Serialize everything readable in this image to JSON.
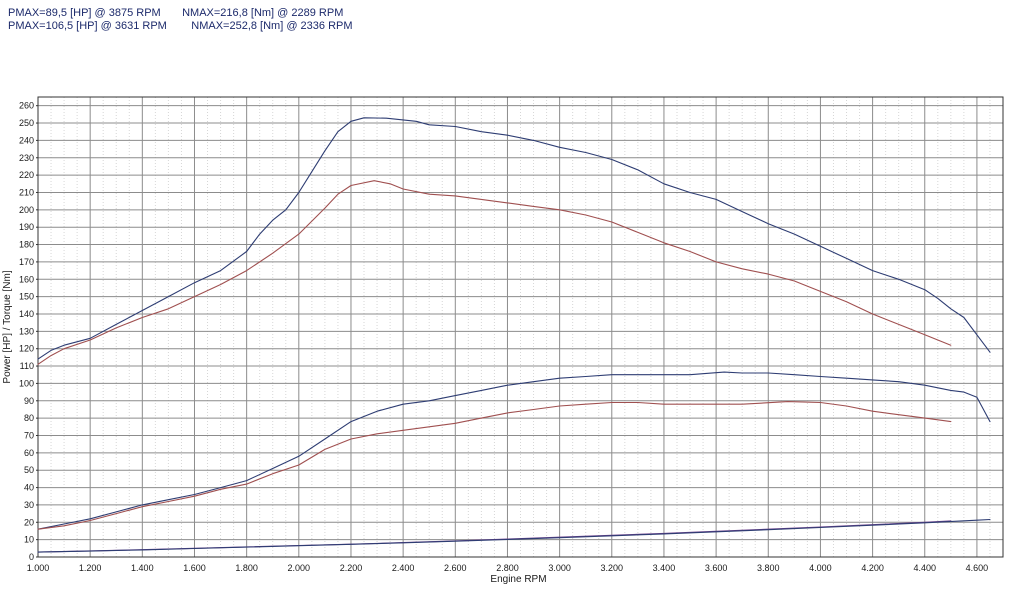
{
  "header": {
    "line1": "PMAX=89,5 [HP] @ 3875 RPM       NMAX=216,8 [Nm] @ 2289 RPM",
    "line2": "PMAX=106,5 [HP] @ 3631 RPM        NMAX=252,8 [Nm] @ 2336 RPM"
  },
  "chart_data": {
    "type": "line",
    "xlabel": "Engine RPM",
    "ylabel": "Power [HP] / Torque [Nm]",
    "xlim": [
      1000,
      4700
    ],
    "ylim": [
      0,
      265
    ],
    "grid": true,
    "x_ticks": [
      1000,
      1200,
      1400,
      1600,
      1800,
      2000,
      2200,
      2400,
      2600,
      2800,
      3000,
      3200,
      3400,
      3600,
      3800,
      4000,
      4200,
      4400,
      4600
    ],
    "x_tick_labels": [
      "1.000",
      "1.200",
      "1.400",
      "1.600",
      "1.800",
      "2.000",
      "2.200",
      "2.400",
      "2.600",
      "2.800",
      "3.000",
      "3.200",
      "3.400",
      "3.600",
      "3.800",
      "4.000",
      "4.200",
      "4.400",
      "4.600"
    ],
    "y_ticks": [
      0,
      10,
      20,
      30,
      40,
      50,
      60,
      70,
      80,
      90,
      100,
      110,
      120,
      130,
      140,
      150,
      160,
      170,
      180,
      190,
      200,
      210,
      220,
      230,
      240,
      250,
      260
    ],
    "series": [
      {
        "color": "#2e3d73",
        "points": [
          [
            1000,
            114
          ],
          [
            1050,
            119
          ],
          [
            1100,
            122
          ],
          [
            1200,
            126
          ],
          [
            1300,
            134
          ],
          [
            1400,
            142
          ],
          [
            1500,
            150
          ],
          [
            1600,
            158
          ],
          [
            1700,
            165
          ],
          [
            1800,
            176
          ],
          [
            1850,
            186
          ],
          [
            1900,
            194
          ],
          [
            1950,
            200
          ],
          [
            2000,
            210
          ],
          [
            2050,
            222
          ],
          [
            2100,
            234
          ],
          [
            2150,
            245
          ],
          [
            2200,
            251
          ],
          [
            2250,
            253
          ],
          [
            2336,
            252.8
          ],
          [
            2450,
            251
          ],
          [
            2500,
            249
          ],
          [
            2600,
            248
          ],
          [
            2700,
            245
          ],
          [
            2800,
            243
          ],
          [
            2900,
            240
          ],
          [
            3000,
            236
          ],
          [
            3100,
            233
          ],
          [
            3200,
            229
          ],
          [
            3300,
            223
          ],
          [
            3400,
            215
          ],
          [
            3500,
            210
          ],
          [
            3600,
            206
          ],
          [
            3700,
            199
          ],
          [
            3800,
            192
          ],
          [
            3900,
            186
          ],
          [
            4000,
            179
          ],
          [
            4100,
            172
          ],
          [
            4200,
            165
          ],
          [
            4300,
            160
          ],
          [
            4400,
            154
          ],
          [
            4450,
            149
          ],
          [
            4500,
            143
          ],
          [
            4550,
            138
          ],
          [
            4600,
            128
          ],
          [
            4650,
            118
          ]
        ]
      },
      {
        "color": "#a05050",
        "points": [
          [
            1000,
            111
          ],
          [
            1050,
            116
          ],
          [
            1100,
            120
          ],
          [
            1200,
            125
          ],
          [
            1300,
            132
          ],
          [
            1400,
            138
          ],
          [
            1500,
            143
          ],
          [
            1600,
            150
          ],
          [
            1700,
            157
          ],
          [
            1800,
            165
          ],
          [
            1900,
            175
          ],
          [
            2000,
            186
          ],
          [
            2100,
            201
          ],
          [
            2150,
            209
          ],
          [
            2200,
            214
          ],
          [
            2289,
            216.8
          ],
          [
            2350,
            215
          ],
          [
            2400,
            212
          ],
          [
            2500,
            209
          ],
          [
            2600,
            208
          ],
          [
            2700,
            206
          ],
          [
            2800,
            204
          ],
          [
            2900,
            202
          ],
          [
            3000,
            200
          ],
          [
            3100,
            197
          ],
          [
            3200,
            193
          ],
          [
            3300,
            187
          ],
          [
            3400,
            181
          ],
          [
            3500,
            176
          ],
          [
            3600,
            170
          ],
          [
            3700,
            166
          ],
          [
            3800,
            163
          ],
          [
            3900,
            159
          ],
          [
            4000,
            153
          ],
          [
            4100,
            147
          ],
          [
            4200,
            140
          ],
          [
            4300,
            134
          ],
          [
            4400,
            128
          ],
          [
            4450,
            125
          ],
          [
            4500,
            122
          ]
        ]
      },
      {
        "color": "#2e3d73",
        "points": [
          [
            1000,
            16
          ],
          [
            1100,
            19
          ],
          [
            1200,
            22
          ],
          [
            1300,
            26
          ],
          [
            1400,
            30
          ],
          [
            1500,
            33
          ],
          [
            1600,
            36
          ],
          [
            1700,
            40
          ],
          [
            1800,
            44
          ],
          [
            1900,
            51
          ],
          [
            2000,
            58
          ],
          [
            2100,
            68
          ],
          [
            2200,
            78
          ],
          [
            2300,
            84
          ],
          [
            2400,
            88
          ],
          [
            2500,
            90
          ],
          [
            2600,
            93
          ],
          [
            2700,
            96
          ],
          [
            2800,
            99
          ],
          [
            2900,
            101
          ],
          [
            3000,
            103
          ],
          [
            3100,
            104
          ],
          [
            3200,
            105
          ],
          [
            3300,
            105
          ],
          [
            3400,
            105
          ],
          [
            3500,
            105
          ],
          [
            3631,
            106.5
          ],
          [
            3700,
            106
          ],
          [
            3800,
            106
          ],
          [
            3900,
            105
          ],
          [
            4000,
            104
          ],
          [
            4100,
            103
          ],
          [
            4200,
            102
          ],
          [
            4300,
            101
          ],
          [
            4400,
            99
          ],
          [
            4500,
            96
          ],
          [
            4550,
            95
          ],
          [
            4600,
            92
          ],
          [
            4650,
            78
          ]
        ]
      },
      {
        "color": "#a05050",
        "points": [
          [
            1000,
            16
          ],
          [
            1100,
            18
          ],
          [
            1200,
            21
          ],
          [
            1300,
            25
          ],
          [
            1400,
            29
          ],
          [
            1500,
            32
          ],
          [
            1600,
            35
          ],
          [
            1700,
            39
          ],
          [
            1800,
            42
          ],
          [
            1900,
            48
          ],
          [
            2000,
            53
          ],
          [
            2100,
            62
          ],
          [
            2200,
            68
          ],
          [
            2300,
            71
          ],
          [
            2400,
            73
          ],
          [
            2500,
            75
          ],
          [
            2600,
            77
          ],
          [
            2700,
            80
          ],
          [
            2800,
            83
          ],
          [
            2900,
            85
          ],
          [
            3000,
            87
          ],
          [
            3100,
            88
          ],
          [
            3200,
            89
          ],
          [
            3300,
            89
          ],
          [
            3400,
            88
          ],
          [
            3500,
            88
          ],
          [
            3600,
            88
          ],
          [
            3700,
            88
          ],
          [
            3875,
            89.5
          ],
          [
            4000,
            89
          ],
          [
            4100,
            87
          ],
          [
            4200,
            84
          ],
          [
            4300,
            82
          ],
          [
            4400,
            80
          ],
          [
            4500,
            78
          ]
        ]
      },
      {
        "color": "#6a3d8a",
        "points": [
          [
            1000,
            2.8
          ],
          [
            1200,
            3.5
          ],
          [
            1400,
            4.2
          ],
          [
            1600,
            5
          ],
          [
            1800,
            5.8
          ],
          [
            2000,
            6.6
          ],
          [
            2200,
            7.4
          ],
          [
            2400,
            8.3
          ],
          [
            2600,
            9.3
          ],
          [
            2800,
            10.3
          ],
          [
            3000,
            11.4
          ],
          [
            3200,
            12.5
          ],
          [
            3400,
            13.6
          ],
          [
            3600,
            14.8
          ],
          [
            3800,
            16
          ],
          [
            4000,
            17.3
          ],
          [
            4200,
            18.6
          ],
          [
            4400,
            20
          ],
          [
            4500,
            20.8
          ]
        ]
      },
      {
        "color": "#2e3d73",
        "points": [
          [
            1000,
            2.8
          ],
          [
            1200,
            3.4
          ],
          [
            1400,
            4.1
          ],
          [
            1600,
            4.9
          ],
          [
            1800,
            5.7
          ],
          [
            2000,
            6.5
          ],
          [
            2200,
            7.3
          ],
          [
            2400,
            8.2
          ],
          [
            2600,
            9.1
          ],
          [
            2800,
            10.1
          ],
          [
            3000,
            11.1
          ],
          [
            3200,
            12.2
          ],
          [
            3400,
            13.3
          ],
          [
            3600,
            14.5
          ],
          [
            3800,
            15.7
          ],
          [
            4000,
            17
          ],
          [
            4200,
            18.3
          ],
          [
            4400,
            19.7
          ],
          [
            4600,
            21.2
          ],
          [
            4650,
            21.6
          ]
        ]
      }
    ]
  }
}
